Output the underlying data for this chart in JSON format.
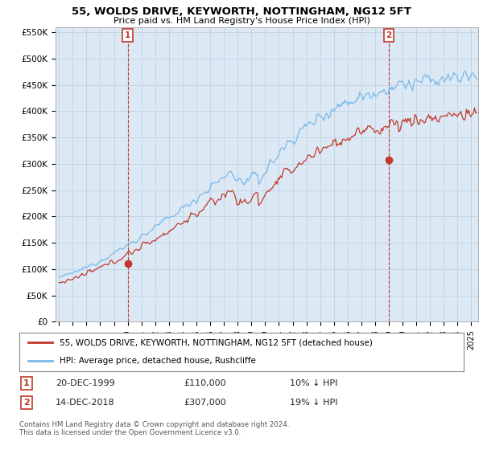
{
  "title": "55, WOLDS DRIVE, KEYWORTH, NOTTINGHAM, NG12 5FT",
  "subtitle": "Price paid vs. HM Land Registry's House Price Index (HPI)",
  "ylabel_ticks": [
    "£0",
    "£50K",
    "£100K",
    "£150K",
    "£200K",
    "£250K",
    "£300K",
    "£350K",
    "£400K",
    "£450K",
    "£500K",
    "£550K"
  ],
  "ytick_vals": [
    0,
    50000,
    100000,
    150000,
    200000,
    250000,
    300000,
    350000,
    400000,
    450000,
    500000,
    550000
  ],
  "ylim": [
    0,
    560000
  ],
  "xlim_start": 1994.75,
  "xlim_end": 2025.5,
  "hpi_color": "#7ab8e8",
  "price_color": "#c0392b",
  "chart_bg": "#dce9f5",
  "background_color": "#ffffff",
  "grid_color": "#b8cfe0",
  "sale1_x": 2000.0,
  "sale1_y": 110000,
  "sale2_x": 2019.0,
  "sale2_y": 307000,
  "legend_line1": "55, WOLDS DRIVE, KEYWORTH, NOTTINGHAM, NG12 5FT (detached house)",
  "legend_line2": "HPI: Average price, detached house, Rushcliffe",
  "note1_label": "1",
  "note1_date": "20-DEC-1999",
  "note1_price": "£110,000",
  "note1_hpi": "10% ↓ HPI",
  "note2_label": "2",
  "note2_date": "14-DEC-2018",
  "note2_price": "£307,000",
  "note2_hpi": "19% ↓ HPI",
  "footer": "Contains HM Land Registry data © Crown copyright and database right 2024.\nThis data is licensed under the Open Government Licence v3.0."
}
